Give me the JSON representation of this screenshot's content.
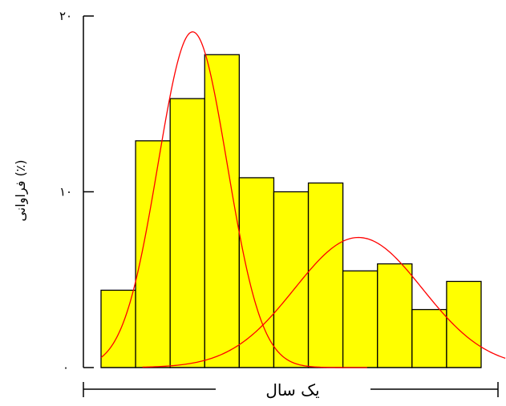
{
  "chart_data": {
    "type": "bar",
    "xlabel": "یک سال",
    "ylabel": "فراوانی (٪)",
    "ylim": [
      0,
      20
    ],
    "yticks": [
      {
        "value": 0,
        "label": "۰"
      },
      {
        "value": 10,
        "label": "۱۰"
      },
      {
        "value": 20,
        "label": "۲۰"
      }
    ],
    "x_range": [
      0,
      11
    ],
    "bar_width": 1,
    "values": [
      4.4,
      12.9,
      15.3,
      17.8,
      10.8,
      10.0,
      10.5,
      5.5,
      5.9,
      3.3,
      4.9
    ],
    "bar_color": "#ffff00",
    "curve_color": "#ff0000",
    "curves": [
      {
        "mean": 2.65,
        "sd": 1.0,
        "peak": 19.1,
        "x_start": 0.0,
        "x_end": 7.7
      },
      {
        "mean": 7.45,
        "sd": 1.85,
        "peak": 7.4,
        "x_start": 1.2,
        "x_end": 11.7
      }
    ],
    "grid": false,
    "legend": "none"
  }
}
